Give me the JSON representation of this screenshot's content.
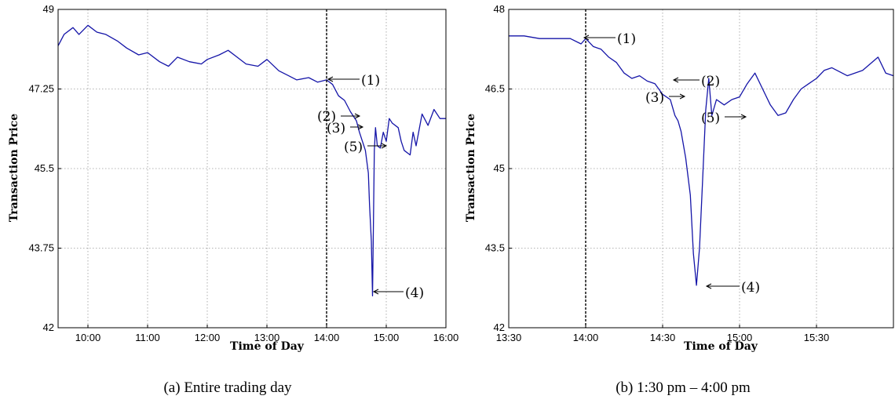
{
  "chart_data": [
    {
      "type": "line",
      "caption": "(a) Entire trading day",
      "xlabel": "Time of Day",
      "ylabel": "Transaction Price",
      "x_ticks": [
        "10:00",
        "11:00",
        "12:00",
        "13:00",
        "14:00",
        "15:00",
        "16:00"
      ],
      "y_ticks": [
        "42",
        "43.75",
        "45.5",
        "47.25",
        "49"
      ],
      "ylim": [
        42,
        49
      ],
      "xlim_hours": [
        9.5,
        16.0
      ],
      "grid": true,
      "marker_line_time": "14:00",
      "series": [
        {
          "x": [
            9.5,
            9.6,
            9.75,
            9.85,
            10.0,
            10.15,
            10.3,
            10.5,
            10.65,
            10.85,
            11.0,
            11.2,
            11.35,
            11.5,
            11.7,
            11.9,
            12.0,
            12.2,
            12.35,
            12.5,
            12.65,
            12.85,
            13.0,
            13.2,
            13.35,
            13.5,
            13.7,
            13.85,
            14.0,
            14.1,
            14.2,
            14.3,
            14.4,
            14.5,
            14.55,
            14.6,
            14.65,
            14.7,
            14.72,
            14.75,
            14.77,
            14.78,
            14.8,
            14.82,
            14.85,
            14.9,
            14.95,
            15.0,
            15.05,
            15.1,
            15.2,
            15.25,
            15.3,
            15.4,
            15.45,
            15.5,
            15.6,
            15.7,
            15.8,
            15.9,
            16.0
          ],
          "y": [
            48.2,
            48.45,
            48.6,
            48.45,
            48.65,
            48.5,
            48.45,
            48.3,
            48.15,
            48.0,
            48.05,
            47.85,
            47.75,
            47.95,
            47.85,
            47.8,
            47.9,
            48.0,
            48.1,
            47.95,
            47.8,
            47.75,
            47.9,
            47.65,
            47.55,
            47.45,
            47.5,
            47.4,
            47.45,
            47.35,
            47.1,
            47.0,
            46.75,
            46.55,
            46.3,
            46.1,
            45.9,
            45.4,
            44.7,
            43.9,
            42.7,
            43.8,
            45.9,
            46.4,
            46.0,
            45.95,
            46.3,
            46.1,
            46.6,
            46.5,
            46.4,
            46.1,
            45.9,
            45.8,
            46.3,
            46.0,
            46.7,
            46.45,
            46.8,
            46.6,
            46.6
          ]
        }
      ],
      "annotations": [
        "(1)",
        "(2)",
        "(3)",
        "(4)",
        "(5)"
      ]
    },
    {
      "type": "line",
      "caption": "(b) 1:30 pm – 4:00 pm",
      "xlabel": "Time of Day",
      "ylabel": "Transaction Price",
      "x_ticks": [
        "13:30",
        "14:00",
        "14:30",
        "15:00",
        "15:30"
      ],
      "y_ticks": [
        "42",
        "43.5",
        "45",
        "46.5",
        "48"
      ],
      "ylim": [
        42,
        48
      ],
      "xlim_hours": [
        13.5,
        16.0
      ],
      "grid": true,
      "marker_line_time": "14:00",
      "series": [
        {
          "x": [
            13.5,
            13.6,
            13.7,
            13.8,
            13.9,
            13.97,
            14.0,
            14.05,
            14.1,
            14.15,
            14.2,
            14.25,
            14.3,
            14.35,
            14.4,
            14.45,
            14.5,
            14.55,
            14.58,
            14.6,
            14.62,
            14.65,
            14.68,
            14.7,
            14.72,
            14.74,
            14.76,
            14.78,
            14.8,
            14.82,
            14.85,
            14.9,
            14.95,
            15.0,
            15.05,
            15.1,
            15.15,
            15.2,
            15.25,
            15.3,
            15.35,
            15.4,
            15.45,
            15.5,
            15.55,
            15.6,
            15.7,
            15.8,
            15.9,
            15.95,
            16.0
          ],
          "y": [
            47.5,
            47.5,
            47.45,
            47.45,
            47.45,
            47.35,
            47.45,
            47.3,
            47.25,
            47.1,
            47.0,
            46.8,
            46.7,
            46.75,
            46.65,
            46.6,
            46.4,
            46.3,
            46.0,
            45.9,
            45.7,
            45.2,
            44.5,
            43.4,
            42.8,
            43.5,
            44.8,
            46.1,
            46.7,
            46.0,
            46.3,
            46.2,
            46.3,
            46.35,
            46.6,
            46.8,
            46.5,
            46.2,
            46.0,
            46.05,
            46.3,
            46.5,
            46.6,
            46.7,
            46.85,
            46.9,
            46.75,
            46.85,
            47.1,
            46.8,
            46.75
          ]
        }
      ],
      "annotations": [
        "(1)",
        "(2)",
        "(3)",
        "(4)",
        "(5)"
      ]
    }
  ]
}
